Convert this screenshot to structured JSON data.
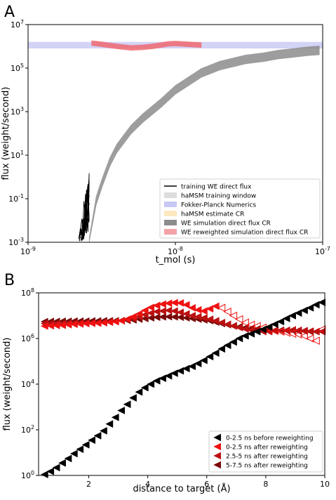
{
  "chart_data": [
    {
      "panel_label": "A",
      "type": "line",
      "xscale": "log",
      "yscale": "log",
      "xlabel": "t_mol (s)",
      "ylabel": "flux (weight/second)",
      "xlim": [
        1e-09,
        1e-07
      ],
      "ylim": [
        0.001,
        10000000.0
      ],
      "x_tick_labels": [
        "10^-9",
        "10^-8",
        "10^-7"
      ],
      "y_tick_labels": [
        "10^-3",
        "10^-1",
        "10^1",
        "10^3",
        "10^5",
        "10^7"
      ],
      "legend_position": "lower right",
      "legend": [
        {
          "label": "training WE direct flux",
          "color": "#000000",
          "kind": "line"
        },
        {
          "label": "haMSM training window",
          "color": "#dddddd",
          "kind": "patch"
        },
        {
          "label": "Fokker-Planck Numerics",
          "color": "#c8c8f4",
          "kind": "patch"
        },
        {
          "label": "haMSM estimate CR",
          "color": "#fde8c0",
          "kind": "patch"
        },
        {
          "label": "WE simulation direct flux CR",
          "color": "#8c8c8c",
          "kind": "patch"
        },
        {
          "label": "WE reweighted simulation direct flux CR",
          "color": "#f3a3a8",
          "kind": "patch"
        }
      ],
      "series": [
        {
          "name": "Fokker-Planck Numerics",
          "kind": "band",
          "color": "#c8c8f4",
          "x_range": [
            1e-09,
            1e-07
          ],
          "y_range": [
            800000.0,
            1600000.0
          ]
        },
        {
          "name": "WE simulation direct flux CR",
          "kind": "band",
          "color": "#8c8c8c",
          "x": [
            2.6e-09,
            2.9e-09,
            3.2e-09,
            3.6e-09,
            4e-09,
            5e-09,
            6e-09,
            8e-09,
            1e-08,
            1.5e-08,
            2e-08,
            3e-08,
            4e-08,
            5e-08,
            6e-08,
            8e-08,
            9.5e-08
          ],
          "y": [
            0.001,
            0.08,
            0.6,
            5,
            20,
            150,
            500,
            2500,
            10000,
            60000,
            130000,
            250000,
            320000,
            420000,
            480000,
            600000,
            650000
          ],
          "band_factor": 1.6
        },
        {
          "name": "WE reweighted simulation direct flux CR",
          "kind": "band",
          "color": "#f06a72",
          "x": [
            2.7e-09,
            3e-09,
            4e-09,
            5e-09,
            6e-09,
            7e-09,
            8e-09,
            9e-09,
            1e-08,
            1.2e-08,
            1.5e-08
          ],
          "y": [
            1400000.0,
            1300000.0,
            1000000.0,
            850000.0,
            900000.0,
            1000000.0,
            1150000.0,
            1300000.0,
            1350000.0,
            1250000.0,
            1150000.0
          ],
          "band_factor": 1.3
        },
        {
          "name": "training WE direct flux",
          "kind": "lines",
          "color": "#000000",
          "x_range": [
            2.2e-09,
            2.6e-09
          ],
          "y_range": [
            0.001,
            1.5
          ]
        }
      ]
    },
    {
      "panel_label": "B",
      "type": "scatter",
      "yscale": "log",
      "xlabel": "distance to target (Å)",
      "ylabel": "flux (weight/second)",
      "xlim": [
        0.3,
        10
      ],
      "ylim": [
        1,
        100000000.0
      ],
      "x_tick_labels": [
        "2",
        "4",
        "6",
        "8",
        "10"
      ],
      "y_tick_labels": [
        "10^0",
        "10^2",
        "10^4",
        "10^6",
        "10^8"
      ],
      "legend_position": "lower right",
      "series": [
        {
          "name": "0-2.5 ns before reweighting",
          "color": "#000000",
          "marker": "triangle-left-filled",
          "x": [
            0.5,
            0.7,
            0.9,
            1.1,
            1.3,
            1.5,
            1.7,
            1.9,
            2.1,
            2.3,
            2.5,
            2.7,
            2.9,
            3.1,
            3.3,
            3.5,
            3.7,
            3.9,
            4.1,
            4.3,
            4.5,
            4.7,
            4.9,
            5.1,
            5.3,
            5.5,
            5.7,
            5.9,
            6.1,
            6.3,
            6.5,
            6.7,
            6.9,
            7.1,
            7.3,
            7.5,
            7.7,
            7.9,
            8.1,
            8.3,
            8.5,
            8.7,
            8.9,
            9.1,
            9.3,
            9.5,
            9.7,
            9.9
          ],
          "y": [
            1.1,
            1.5,
            2.2,
            3.5,
            5.5,
            9,
            14,
            22,
            35,
            55,
            90,
            180,
            350,
            700,
            1300,
            2500,
            4500,
            7000,
            10000,
            14000,
            18000,
            23000,
            30000,
            38000,
            48000,
            60000,
            80000,
            110000,
            160000,
            230000,
            350000,
            500000,
            700000,
            1000000,
            1300000,
            1600000,
            2000000,
            2500000,
            3200000,
            4200000,
            5500000,
            7500000,
            10000000,
            13000000,
            17000000,
            22000000,
            30000000,
            38000000
          ]
        },
        {
          "name": "0-2.5 ns after reweighting",
          "color": "#ee1111",
          "marker": "triangle-left-filled",
          "x": [
            0.5,
            0.7,
            0.9,
            1.1,
            1.3,
            1.5,
            1.7,
            1.9,
            2.1,
            2.3,
            2.5,
            2.7,
            2.9,
            3.1,
            3.3,
            3.5,
            3.7,
            3.9,
            4.1,
            4.3,
            4.5,
            4.7,
            4.9,
            5.1,
            5.3,
            5.5,
            5.7,
            5.9,
            6.1,
            6.3,
            6.5,
            6.7,
            6.9,
            7.1,
            7.3,
            7.5,
            7.7,
            7.9,
            8.1,
            8.3,
            8.5,
            8.7,
            8.9,
            9.1,
            9.3,
            9.5,
            9.7,
            9.9
          ],
          "y": [
            3500000,
            3600000,
            3700000,
            3800000,
            4000000,
            4200000,
            4300000,
            4500000,
            4600000,
            4700000,
            4900000,
            5200000,
            5500000,
            6000000,
            7000000,
            9000000,
            12000000,
            17000000,
            23000000,
            28000000,
            32000000,
            35000000,
            37000000,
            36000000,
            30000000,
            22000000,
            18000000,
            16000000,
            20000000,
            26000000,
            22000000,
            15000000,
            10000000,
            7000000,
            5000000,
            4000000,
            3500000,
            3000000,
            2500000,
            2200000,
            2000000,
            1800000,
            1600000,
            1500000,
            1300000,
            1000000,
            800000,
            2500000
          ],
          "open_from_x": 6.4
        },
        {
          "name": "2.5-5 ns after reweighting",
          "color": "#bb1111",
          "marker": "triangle-left-filled",
          "x": [
            0.5,
            0.7,
            0.9,
            1.1,
            1.3,
            1.5,
            1.7,
            1.9,
            2.1,
            2.3,
            2.5,
            2.7,
            2.9,
            3.1,
            3.3,
            3.5,
            3.7,
            3.9,
            4.1,
            4.3,
            4.5,
            4.7,
            4.9,
            5.1,
            5.3,
            5.5,
            5.7,
            5.9,
            6.1,
            6.3,
            6.5,
            6.7,
            6.9,
            7.1,
            7.3,
            7.5,
            7.7,
            7.9,
            8.1,
            8.3,
            8.5,
            8.7,
            8.9,
            9.1,
            9.3,
            9.5,
            9.7,
            9.9
          ],
          "y": [
            4500000,
            4500000,
            4500000,
            4500000,
            4600000,
            4600000,
            4700000,
            4700000,
            4800000,
            4800000,
            5000000,
            5200000,
            5500000,
            6000000,
            6800000,
            7500000,
            9000000,
            11000000,
            13000000,
            15000000,
            16000000,
            17000000,
            16000000,
            14000000,
            12000000,
            10000000,
            9000000,
            8000000,
            7000000,
            6000000,
            5000000,
            4200000,
            3500000,
            3000000,
            2600000,
            2300000,
            2100000,
            2000000,
            2000000,
            2100000,
            2200000,
            2300000,
            2400000,
            2300000,
            2200000,
            2100000,
            2000000,
            2000000
          ]
        },
        {
          "name": "5-7.5 ns after reweighting",
          "color": "#7a0a0a",
          "marker": "triangle-left-filled",
          "x": [
            0.5,
            0.7,
            0.9,
            1.1,
            1.3,
            1.5,
            1.7,
            1.9,
            2.1,
            2.3,
            2.5,
            2.7,
            2.9,
            3.1,
            3.3,
            3.5,
            3.7,
            3.9,
            4.1,
            4.3,
            4.5,
            4.7,
            4.9,
            5.1,
            5.3,
            5.5,
            5.7,
            5.9,
            6.1,
            6.3,
            6.5,
            6.7,
            6.9,
            7.1,
            7.3,
            7.5,
            7.7,
            7.9,
            8.1,
            8.3,
            8.5,
            8.7,
            8.9,
            9.1,
            9.3,
            9.5,
            9.7,
            9.9
          ],
          "y": [
            5500000,
            5600000,
            5600000,
            5700000,
            5700000,
            5800000,
            5800000,
            5800000,
            5900000,
            5900000,
            6000000,
            6000000,
            6000000,
            6100000,
            6200000,
            6500000,
            7000000,
            7500000,
            8000000,
            8500000,
            8800000,
            9000000,
            8800000,
            8500000,
            8000000,
            7500000,
            7000000,
            6500000,
            6000000,
            5200000,
            4500000,
            4000000,
            3600000,
            3300000,
            3000000,
            2800000,
            2600000,
            2500000,
            2400000,
            2300000,
            2300000,
            2200000,
            2200000,
            2100000,
            2100000,
            2000000,
            2000000,
            2000000
          ]
        }
      ]
    }
  ],
  "colors": {
    "background": "#ffffff",
    "training_lines": "#000000",
    "we_band": "#8c8c8c",
    "reweighted_band": "#f06a72",
    "fp_band": "#c8c8f4"
  }
}
